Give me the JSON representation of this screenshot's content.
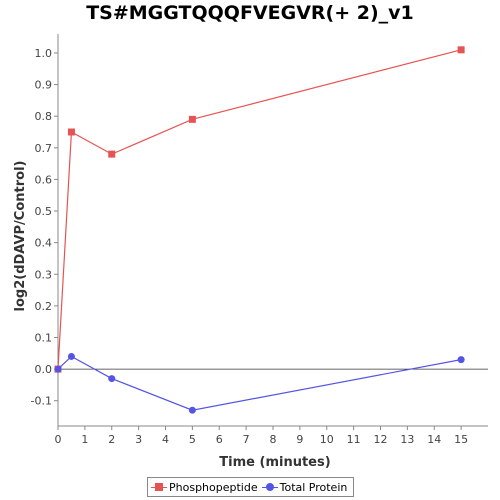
{
  "colors": {
    "phospho": "#e55454",
    "total": "#5454e5",
    "axis": "#888888",
    "zero_line": "#333333"
  },
  "chart_data": {
    "type": "line",
    "title": "TS#MGGTQQQFVEGVR(+ 2)_v1",
    "xlabel": "Time (minutes)",
    "ylabel": "log2(dDAVP/Control)",
    "xlim": [
      0,
      16
    ],
    "ylim": [
      -0.18,
      1.06
    ],
    "xticks": [
      "0",
      "1",
      "2",
      "3",
      "4",
      "5",
      "6",
      "7",
      "8",
      "9",
      "10",
      "11",
      "12",
      "13",
      "14",
      "15"
    ],
    "yticks": [
      "-0.1",
      "0.0",
      "0.1",
      "0.2",
      "0.3",
      "0.4",
      "0.5",
      "0.6",
      "0.7",
      "0.8",
      "0.9",
      "1.0"
    ],
    "grid": false,
    "legend_position": "bottom",
    "series": [
      {
        "name": "Phosphopeptide",
        "marker": "square",
        "color": "#e55454",
        "x": [
          0,
          0.5,
          2,
          5,
          15
        ],
        "y": [
          0.0,
          0.75,
          0.68,
          0.79,
          1.01
        ]
      },
      {
        "name": "Total Protein",
        "marker": "circle",
        "color": "#5454e5",
        "x": [
          0,
          0.5,
          2,
          5,
          15
        ],
        "y": [
          0.0,
          0.04,
          -0.03,
          -0.13,
          0.03
        ]
      }
    ]
  }
}
